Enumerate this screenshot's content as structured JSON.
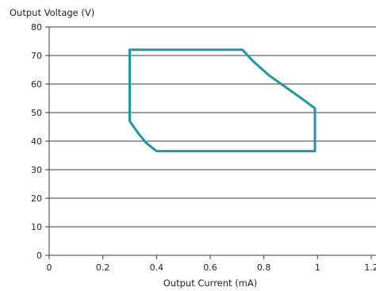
{
  "chart_data": {
    "type": "line",
    "title": "",
    "xlabel": "Output Current (mA)",
    "ylabel": "Output Voltage (V)",
    "xlim": [
      0,
      1.2
    ],
    "ylim": [
      0,
      80
    ],
    "xticks": [
      0,
      0.2,
      0.4,
      0.6,
      0.8,
      1,
      1.2
    ],
    "xtick_labels": [
      "0",
      "0.2",
      "0.4",
      "0.6",
      "0.8",
      "1",
      "1.2"
    ],
    "yticks": [
      0,
      10,
      20,
      30,
      40,
      50,
      60,
      70,
      80
    ],
    "ytick_labels": [
      "0",
      "10",
      "20",
      "30",
      "40",
      "50",
      "60",
      "70",
      "80"
    ],
    "grid": "horizontal",
    "legend": "none",
    "series": [
      {
        "color": "#1b9aa6",
        "closed": true,
        "x": [
          0.3,
          0.72,
          0.76,
          0.82,
          0.88,
          0.94,
          0.99,
          0.99,
          0.4,
          0.36,
          0.33,
          0.3,
          0.3
        ],
        "y": [
          72,
          72,
          68,
          63,
          59,
          55,
          51.5,
          36.5,
          36.5,
          39.5,
          43,
          47,
          72
        ]
      }
    ]
  }
}
